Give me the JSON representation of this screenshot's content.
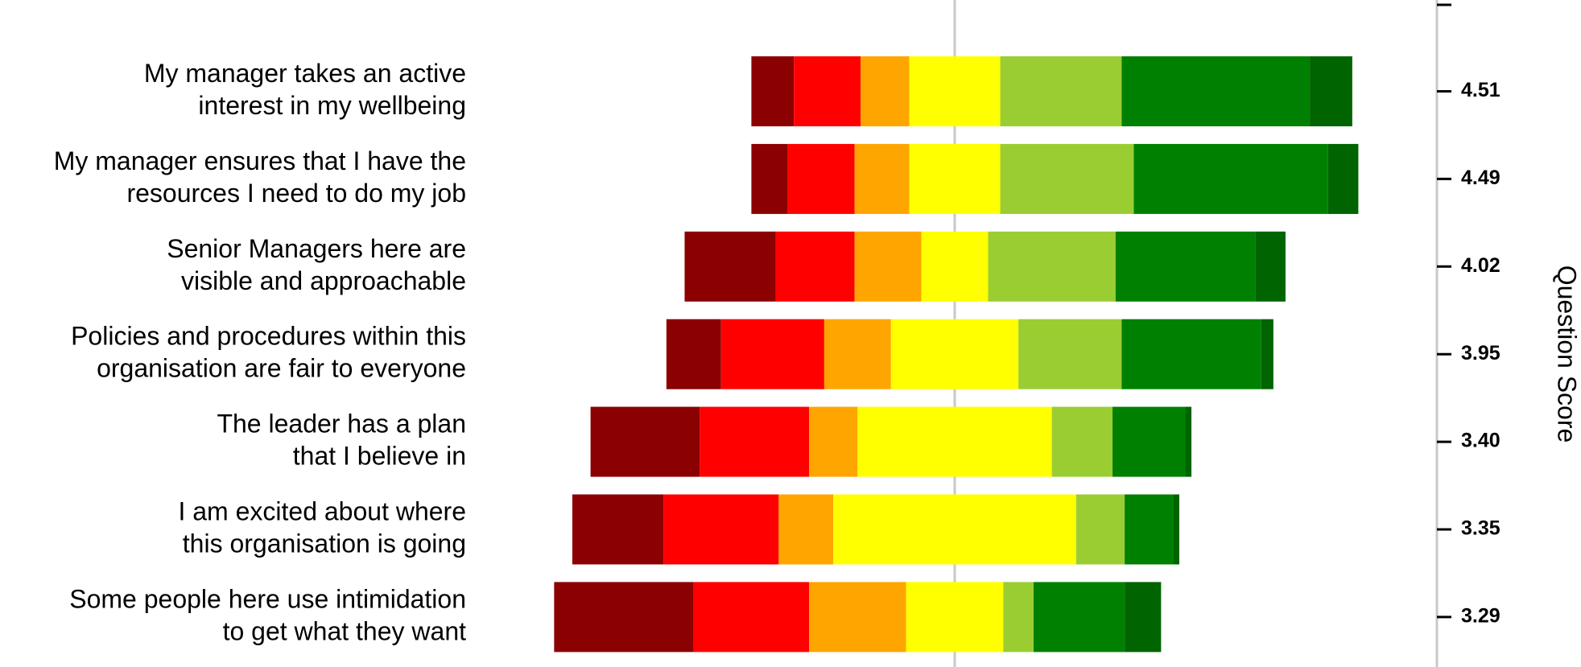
{
  "chart_data": {
    "type": "diverging_bar",
    "categories": [
      [
        "My manager takes an active",
        "interest in my wellbeing"
      ],
      [
        "My manager ensures that I have the",
        "resources I need to do my job"
      ],
      [
        "Senior Managers here are",
        "visible and approachable"
      ],
      [
        "Policies and procedures within this",
        "organisation are fair to everyone"
      ],
      [
        "The leader has a plan",
        "that I believe in"
      ],
      [
        "I am excited about where",
        "this organisation is going"
      ],
      [
        "Some people here use intimidation",
        "to get what they want"
      ]
    ],
    "series": [
      {
        "color": "#8b0000",
        "values": [
          7,
          6,
          15,
          9,
          18,
          15,
          23
        ]
      },
      {
        "color": "#ff0000",
        "values": [
          11,
          11,
          13,
          17,
          18,
          19,
          19
        ]
      },
      {
        "color": "#ffa500",
        "values": [
          8,
          9,
          11,
          11,
          8,
          9,
          16
        ]
      },
      {
        "color": "#ffff00",
        "values": [
          15,
          15,
          11,
          21,
          32,
          40,
          16
        ]
      },
      {
        "color": "#9acd32",
        "values": [
          20,
          22,
          21,
          17,
          10,
          8,
          5
        ]
      },
      {
        "color": "#008000",
        "values": [
          31,
          32,
          23,
          23,
          12,
          8,
          15
        ]
      },
      {
        "color": "#006400",
        "values": [
          7,
          5,
          5,
          2,
          1,
          1,
          6
        ]
      }
    ],
    "neutral_series": 3,
    "scores": [
      "4.51",
      "4.49",
      "4.02",
      "3.95",
      "3.40",
      "3.35",
      "3.29"
    ],
    "y2_label": "Question Score"
  }
}
